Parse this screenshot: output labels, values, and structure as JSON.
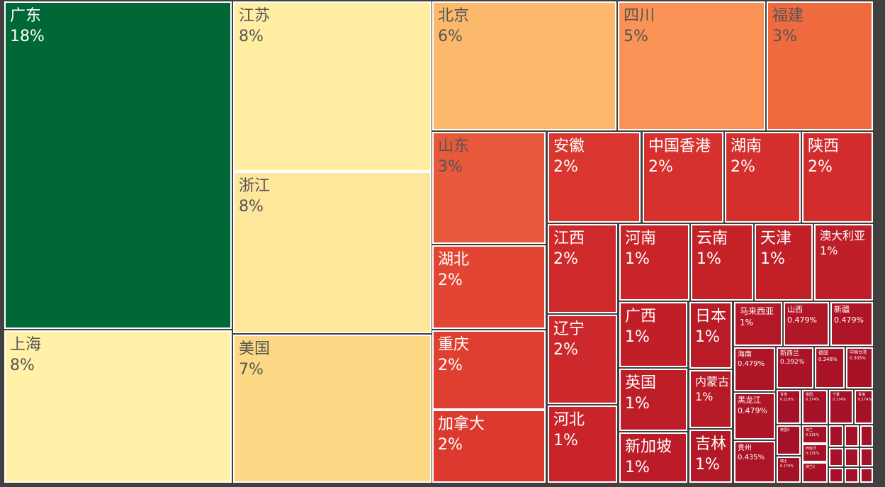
{
  "chart_data": {
    "type": "treemap",
    "title": "",
    "unit": "%",
    "items": [
      {
        "name": "广东",
        "label": "18%",
        "value": 18,
        "color": "#006837",
        "text_color": "#ffffff"
      },
      {
        "name": "上海",
        "label": "8%",
        "value": 8,
        "color": "#fff2a8",
        "text_color": "#555555"
      },
      {
        "name": "江苏",
        "label": "8%",
        "value": 8,
        "color": "#ffeea1",
        "text_color": "#555555"
      },
      {
        "name": "浙江",
        "label": "8%",
        "value": 8,
        "color": "#fee69a",
        "text_color": "#555555"
      },
      {
        "name": "美国",
        "label": "7%",
        "value": 7,
        "color": "#fdd985",
        "text_color": "#555555"
      },
      {
        "name": "北京",
        "label": "6%",
        "value": 6,
        "color": "#fdb96b",
        "text_color": "#555555"
      },
      {
        "name": "四川",
        "label": "5%",
        "value": 5,
        "color": "#fa9355",
        "text_color": "#555555"
      },
      {
        "name": "福建",
        "label": "3%",
        "value": 3,
        "color": "#f06a40",
        "text_color": "#555555"
      },
      {
        "name": "山东",
        "label": "3%",
        "value": 3,
        "color": "#e8593c",
        "text_color": "#555555"
      },
      {
        "name": "湖北",
        "label": "2%",
        "value": 2,
        "color": "#e24534",
        "text_color": "#ffffff"
      },
      {
        "name": "重庆",
        "label": "2%",
        "value": 2,
        "color": "#df3f31",
        "text_color": "#ffffff"
      },
      {
        "name": "加拿大",
        "label": "2%",
        "value": 2,
        "color": "#dc3a2e",
        "text_color": "#ffffff"
      },
      {
        "name": "安徽",
        "label": "2%",
        "value": 2,
        "color": "#d93630",
        "text_color": "#ffffff"
      },
      {
        "name": "中国香港",
        "label": "2%",
        "value": 2,
        "color": "#d7312e",
        "text_color": "#ffffff"
      },
      {
        "name": "湖南",
        "label": "2%",
        "value": 2,
        "color": "#d42f2d",
        "text_color": "#ffffff"
      },
      {
        "name": "陕西",
        "label": "2%",
        "value": 2,
        "color": "#d22d2c",
        "text_color": "#ffffff"
      },
      {
        "name": "江西",
        "label": "2%",
        "value": 2,
        "color": "#cf2a2b",
        "text_color": "#ffffff"
      },
      {
        "name": "辽宁",
        "label": "2%",
        "value": 2,
        "color": "#cd282b",
        "text_color": "#ffffff"
      },
      {
        "name": "河北",
        "label": "1%",
        "value": 1,
        "color": "#c8242a",
        "text_color": "#ffffff"
      },
      {
        "name": "河南",
        "label": "1%",
        "value": 1,
        "color": "#c82429",
        "text_color": "#ffffff"
      },
      {
        "name": "云南",
        "label": "1%",
        "value": 1,
        "color": "#c52228",
        "text_color": "#ffffff"
      },
      {
        "name": "天津",
        "label": "1%",
        "value": 1,
        "color": "#c22027",
        "text_color": "#ffffff"
      },
      {
        "name": "澳大利亚",
        "label": "1%",
        "value": 1,
        "color": "#be1e27",
        "text_color": "#ffffff"
      },
      {
        "name": "广西",
        "label": "1%",
        "value": 1,
        "color": "#c11f28",
        "text_color": "#ffffff"
      },
      {
        "name": "英国",
        "label": "1%",
        "value": 1,
        "color": "#be1e27",
        "text_color": "#ffffff"
      },
      {
        "name": "新加坡",
        "label": "1%",
        "value": 1,
        "color": "#bb1c27",
        "text_color": "#ffffff"
      },
      {
        "name": "日本",
        "label": "1%",
        "value": 1,
        "color": "#b91b27",
        "text_color": "#ffffff"
      },
      {
        "name": "内蒙古",
        "label": "1%",
        "value": 1,
        "color": "#b61a27",
        "text_color": "#ffffff"
      },
      {
        "name": "吉林",
        "label": "1%",
        "value": 1,
        "color": "#b41927",
        "text_color": "#ffffff"
      },
      {
        "name": "马来西亚",
        "label": "1%",
        "value": 1,
        "color": "#b21827",
        "text_color": "#ffffff"
      },
      {
        "name": "山西",
        "label": "0.479%",
        "value": 0.479,
        "color": "#b01727",
        "text_color": "#ffffff"
      },
      {
        "name": "新疆",
        "label": "0.479%",
        "value": 0.479,
        "color": "#ae1627",
        "text_color": "#ffffff"
      },
      {
        "name": "海南",
        "label": "0.479%",
        "value": 0.479,
        "color": "#ae1627",
        "text_color": "#ffffff"
      },
      {
        "name": "黑龙江",
        "label": "0.479%",
        "value": 0.479,
        "color": "#ae1627",
        "text_color": "#ffffff"
      },
      {
        "name": "贵州",
        "label": "0.435%",
        "value": 0.435,
        "color": "#ac1527",
        "text_color": "#ffffff"
      },
      {
        "name": "新西兰",
        "label": "0.392%",
        "value": 0.392,
        "color": "#aa1427",
        "text_color": "#ffffff"
      },
      {
        "name": "德国",
        "label": "0.348%",
        "value": 0.348,
        "color": "#a81327",
        "text_color": "#ffffff"
      },
      {
        "name": "中国台湾",
        "label": "0.305%",
        "value": 0.305,
        "color": "#a71227",
        "text_color": "#ffffff"
      },
      {
        "name": "甘肃",
        "label": "0.218%",
        "value": 0.218,
        "color": "#a51127",
        "text_color": "#ffffff"
      },
      {
        "name": "泰国",
        "label": "0.174%",
        "value": 0.174,
        "color": "#a51127",
        "text_color": "#ffffff"
      },
      {
        "name": "宁夏",
        "label": "0.174%",
        "value": 0.174,
        "color": "#a51127",
        "text_color": "#ffffff"
      },
      {
        "name": "青海",
        "label": "0.174%",
        "value": 0.174,
        "color": "#a51127",
        "text_color": "#ffffff"
      },
      {
        "name": "英国2",
        "label": "",
        "value": 0.13,
        "color": "#a51127",
        "text_color": "#ffffff"
      },
      {
        "name": "荷兰",
        "label": "0.131%",
        "value": 0.131,
        "color": "#a51127",
        "text_color": "#ffffff"
      },
      {
        "name": "西班牙",
        "label": "0.131%",
        "value": 0.131,
        "color": "#a51127",
        "text_color": "#ffffff"
      },
      {
        "name": "瑞士",
        "label": "0.174%",
        "value": 0.174,
        "color": "#a51127",
        "text_color": "#ffffff"
      },
      {
        "name": "荷兰2",
        "label": "",
        "value": 0.13,
        "color": "#a51127",
        "text_color": "#ffffff"
      },
      {
        "name": "阿联酋",
        "label": "0.131%",
        "value": 0.131,
        "color": "#a51127",
        "text_color": "#ffffff"
      },
      {
        "name": "s1",
        "label": "",
        "value": 0.09,
        "color": "#a51127",
        "text_color": "#ffffff"
      },
      {
        "name": "s2",
        "label": "",
        "value": 0.09,
        "color": "#a51127",
        "text_color": "#ffffff"
      },
      {
        "name": "s3",
        "label": "",
        "value": 0.09,
        "color": "#a51127",
        "text_color": "#ffffff"
      },
      {
        "name": "s4",
        "label": "",
        "value": 0.09,
        "color": "#a51127",
        "text_color": "#ffffff"
      },
      {
        "name": "s5",
        "label": "",
        "value": 0.06,
        "color": "#a51127",
        "text_color": "#ffffff"
      },
      {
        "name": "s6",
        "label": "",
        "value": 0.06,
        "color": "#a51127",
        "text_color": "#ffffff"
      },
      {
        "name": "s7",
        "label": "",
        "value": 0.06,
        "color": "#a51127",
        "text_color": "#ffffff"
      },
      {
        "name": "s8",
        "label": "",
        "value": 0.06,
        "color": "#a51127",
        "text_color": "#ffffff"
      },
      {
        "name": "s9",
        "label": "",
        "value": 0.05,
        "color": "#a51127",
        "text_color": "#ffffff"
      },
      {
        "name": "s10",
        "label": "",
        "value": 0.05,
        "color": "#a51127",
        "text_color": "#ffffff"
      },
      {
        "name": "s11",
        "label": "",
        "value": 0.05,
        "color": "#a51127",
        "text_color": "#ffffff"
      },
      {
        "name": "s12",
        "label": "",
        "value": 0.05,
        "color": "#a51127",
        "text_color": "#ffffff"
      },
      {
        "name": "s13",
        "label": "",
        "value": 0.04,
        "color": "#a51127",
        "text_color": "#ffffff"
      },
      {
        "name": "s14",
        "label": "",
        "value": 0.04,
        "color": "#a51127",
        "text_color": "#ffffff"
      },
      {
        "name": "s15",
        "label": "",
        "value": 0.04,
        "color": "#a51127",
        "text_color": "#ffffff"
      },
      {
        "name": "s16",
        "label": "",
        "value": 0.04,
        "color": "#a51127",
        "text_color": "#ffffff"
      }
    ]
  }
}
